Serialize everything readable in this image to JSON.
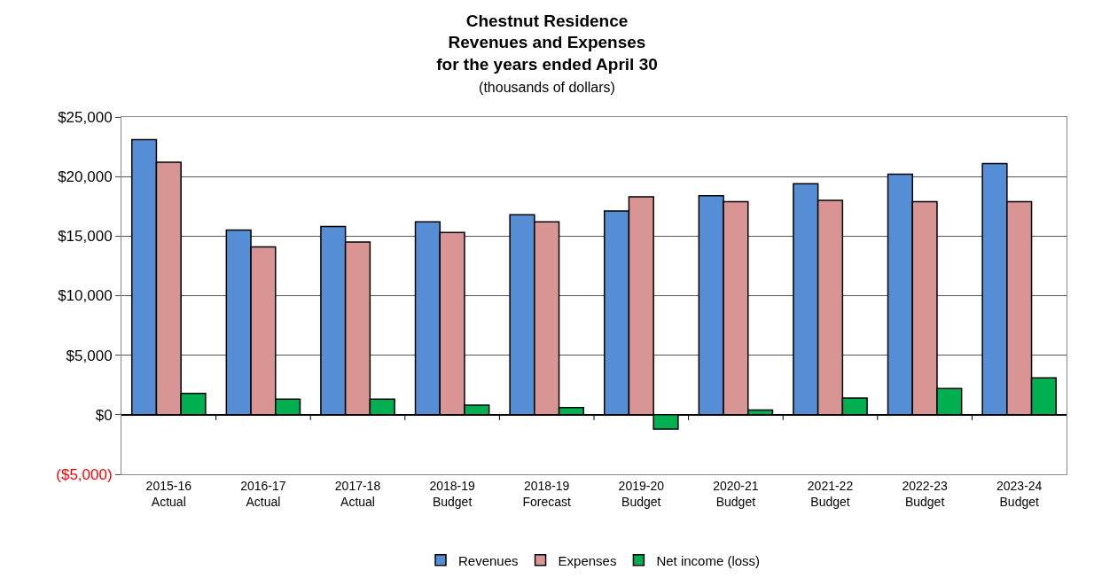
{
  "chart_data": {
    "type": "bar",
    "title": "Chestnut Residence\nRevenues and Expenses\nfor the years ended April 30",
    "subtitle": "(thousands of dollars)",
    "categories": [
      "2015-16\nActual",
      "2016-17\nActual",
      "2017-18\nActual",
      "2018-19\nBudget",
      "2018-19\nForecast",
      "2019-20\nBudget",
      "2020-21\nBudget",
      "2021-22\nBudget",
      "2022-23\nBudget",
      "2023-24\nBudget"
    ],
    "series": [
      {
        "name": "Revenues",
        "color": "#558ed5",
        "values": [
          23100,
          15500,
          15800,
          16200,
          16800,
          17100,
          18400,
          19400,
          20200,
          21100
        ]
      },
      {
        "name": "Expenses",
        "color": "#d99594",
        "values": [
          21200,
          14100,
          14500,
          15300,
          16200,
          18300,
          17900,
          18000,
          17900,
          17900
        ]
      },
      {
        "name": "Net income (loss)",
        "color": "#00b050",
        "values": [
          1800,
          1300,
          1300,
          800,
          600,
          -1200,
          400,
          1400,
          2200,
          3100
        ]
      }
    ],
    "ylim": [
      -5000,
      25000
    ],
    "yticks": [
      {
        "value": -5000,
        "label": "($5,000)"
      },
      {
        "value": 0,
        "label": "$0"
      },
      {
        "value": 5000,
        "label": "$5,000"
      },
      {
        "value": 10000,
        "label": "$10,000"
      },
      {
        "value": 15000,
        "label": "$15,000"
      },
      {
        "value": 20000,
        "label": "$20,000"
      },
      {
        "value": 25000,
        "label": "$25,000"
      }
    ],
    "grid": "y",
    "legend": "bottom"
  }
}
